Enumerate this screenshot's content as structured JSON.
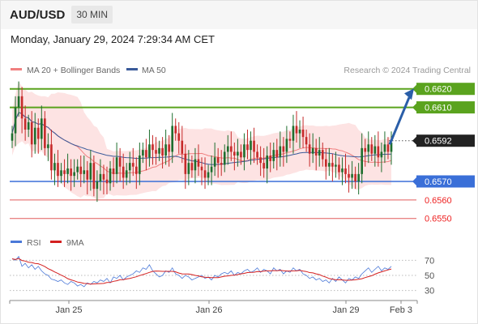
{
  "header": {
    "symbol": "AUD/USD",
    "timeframe": "30 MIN",
    "datetime": "Monday, January 29, 2024 7:29:34 AM CET"
  },
  "legend": {
    "ma20": "MA 20 + Bollinger Bands",
    "ma50": "MA 50",
    "credit": "Research © 2024 Trading Central",
    "rsi": "RSI",
    "rsi_ma": "9MA"
  },
  "colors": {
    "resistance": "#5aa31e",
    "support": "#3a6fd8",
    "minor": "#e25b5b",
    "current": "#222222",
    "arrow": "#2a5ea8",
    "ma20": "#f07f7f",
    "ma50": "#3a5a9a",
    "band": "#fde3e3",
    "candle_up": "#1e6e2e",
    "candle_down": "#c62a2a",
    "rsi": "#4a78d8",
    "rsi_ma": "#d42020"
  },
  "chart_data": {
    "type": "candlestick",
    "timeframe": "30 MIN",
    "x_ticks": [
      "Jan 25",
      "Jan 26",
      "Jan 29",
      "Feb 3"
    ],
    "ylim": [
      0.6542,
      0.6626
    ],
    "levels": [
      {
        "value": 0.662,
        "label": "0.6620",
        "kind": "resistance"
      },
      {
        "value": 0.661,
        "label": "0.6610",
        "kind": "resistance"
      },
      {
        "value": 0.6592,
        "label": "0.6592",
        "kind": "current"
      },
      {
        "value": 0.657,
        "label": "0.6570",
        "kind": "support"
      },
      {
        "value": 0.656,
        "label": "0.6560",
        "kind": "minor"
      },
      {
        "value": 0.655,
        "label": "0.6550",
        "kind": "minor"
      }
    ],
    "forecast_arrow": {
      "from": 0.659,
      "to": 0.6618
    },
    "close": [
      0.6596,
      0.661,
      0.6616,
      0.6604,
      0.6598,
      0.6602,
      0.659,
      0.6599,
      0.6593,
      0.6604,
      0.6588,
      0.659,
      0.6576,
      0.658,
      0.6573,
      0.6576,
      0.6574,
      0.6577,
      0.6573,
      0.6575,
      0.6578,
      0.6574,
      0.6576,
      0.6571,
      0.658,
      0.6566,
      0.657,
      0.6574,
      0.6571,
      0.6569,
      0.6577,
      0.6574,
      0.6583,
      0.6578,
      0.6572,
      0.6576,
      0.658,
      0.6578,
      0.6574,
      0.6584,
      0.6587,
      0.6583,
      0.659,
      0.6587,
      0.6585,
      0.6588,
      0.6584,
      0.659,
      0.6586,
      0.66,
      0.6596,
      0.6592,
      0.6585,
      0.6574,
      0.658,
      0.6576,
      0.6582,
      0.6578,
      0.6576,
      0.6572,
      0.6575,
      0.6578,
      0.6583,
      0.658,
      0.6579,
      0.6586,
      0.6589,
      0.6586,
      0.6584,
      0.6586,
      0.6583,
      0.659,
      0.6587,
      0.6592,
      0.6586,
      0.6583,
      0.658,
      0.6577,
      0.6584,
      0.6581,
      0.6587,
      0.6583,
      0.6589,
      0.6586,
      0.6593,
      0.6592,
      0.66,
      0.6596,
      0.6598,
      0.6594,
      0.659,
      0.6585,
      0.6588,
      0.6584,
      0.6587,
      0.6582,
      0.6578,
      0.658,
      0.6578,
      0.6579,
      0.6575,
      0.6577,
      0.6574,
      0.6572,
      0.6574,
      0.657,
      0.6574,
      0.6588,
      0.6586,
      0.659,
      0.6585,
      0.6589,
      0.6583,
      0.6586,
      0.659,
      0.6586,
      0.6591
    ],
    "rsi": {
      "ylim": [
        20,
        80
      ],
      "ticks": [
        70,
        50,
        30
      ],
      "values": [
        72,
        70,
        75,
        62,
        66,
        60,
        64,
        58,
        62,
        56,
        52,
        50,
        45,
        44,
        42,
        44,
        40,
        38,
        42,
        40,
        36,
        38,
        35,
        40,
        38,
        42,
        40,
        44,
        42,
        46,
        40,
        48,
        46,
        50,
        44,
        48,
        50,
        52,
        56,
        54,
        60,
        58,
        64,
        56,
        52,
        48,
        50,
        56,
        54,
        60,
        52,
        50,
        46,
        50,
        48,
        44,
        46,
        48,
        50,
        46,
        48,
        44,
        50,
        48,
        52,
        54,
        52,
        56,
        50,
        54,
        52,
        56,
        58,
        54,
        56,
        60,
        54,
        58,
        56,
        52,
        60,
        56,
        58,
        52,
        56,
        54,
        60,
        56,
        58,
        52,
        50,
        46,
        48,
        44,
        46,
        42,
        44,
        40,
        46,
        42,
        48,
        44,
        40,
        46,
        44,
        48,
        46,
        52,
        56,
        60,
        54,
        58,
        62,
        56,
        60,
        58,
        62
      ]
    }
  }
}
